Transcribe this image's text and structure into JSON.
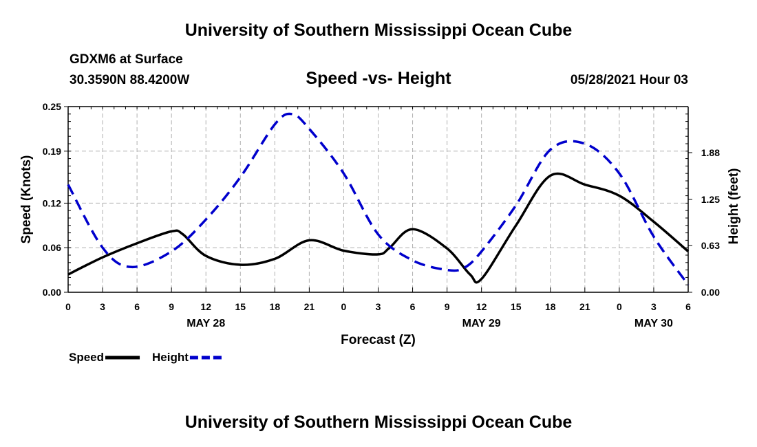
{
  "header": {
    "title": "University of Southern Mississippi Ocean Cube",
    "station": "GDXM6 at Surface",
    "coords": "30.3590N  88.4200W",
    "chart_title": "Speed -vs- Height",
    "datetime": "05/28/2021 Hour 03"
  },
  "footer": {
    "title": "University of Southern Mississippi Ocean Cube"
  },
  "chart_data": {
    "type": "line",
    "title": "Speed -vs- Height",
    "xlabel": "Forecast (Z)",
    "ylabel_left": "Speed (Knots)",
    "ylabel_right": "Height (feet)",
    "x_hours_range": [
      0,
      54
    ],
    "x_tick_hours": [
      0,
      3,
      6,
      9,
      12,
      15,
      18,
      21,
      24,
      27,
      30,
      33,
      36,
      39,
      42,
      45,
      48,
      51,
      54
    ],
    "x_tick_labels": [
      "0",
      "3",
      "6",
      "9",
      "12",
      "15",
      "18",
      "21",
      "0",
      "3",
      "6",
      "9",
      "12",
      "15",
      "18",
      "21",
      "0",
      "3",
      "6"
    ],
    "date_labels": [
      {
        "hour": 12,
        "label": "MAY 28"
      },
      {
        "hour": 36,
        "label": "MAY 29"
      },
      {
        "hour": 51,
        "label": "MAY 30"
      }
    ],
    "left_axis": {
      "ylim": [
        0,
        0.25
      ],
      "ticks": [
        0.0,
        0.06,
        0.12,
        0.19,
        0.25
      ],
      "tick_labels": [
        "0.00",
        "0.06",
        "0.12",
        "0.19",
        "0.25"
      ]
    },
    "right_axis": {
      "ylim": [
        0,
        2.5
      ],
      "ticks": [
        0.0,
        0.63,
        1.25,
        1.88
      ],
      "tick_labels": [
        "0.00",
        "0.63",
        "1.25",
        "1.88"
      ]
    },
    "grid": true,
    "legend_position": "bottom-left",
    "series": [
      {
        "name": "Speed",
        "axis": "left",
        "color": "#000000",
        "style": "solid",
        "x": [
          0,
          3,
          6,
          9,
          10,
          12,
          15,
          18,
          21,
          24,
          27,
          28,
          30,
          33,
          35,
          36,
          39,
          42,
          45,
          48,
          51,
          54
        ],
        "y": [
          0.024,
          0.047,
          0.066,
          0.082,
          0.078,
          0.049,
          0.037,
          0.045,
          0.07,
          0.056,
          0.051,
          0.06,
          0.085,
          0.059,
          0.024,
          0.018,
          0.09,
          0.157,
          0.145,
          0.13,
          0.095,
          0.055
        ]
      },
      {
        "name": "Height",
        "axis": "right",
        "color": "#0000cc",
        "style": "dashed",
        "x": [
          0,
          3,
          5.5,
          9,
          12,
          15,
          18,
          19.5,
          21,
          24,
          27,
          30,
          33,
          34.5,
          36,
          39,
          42,
          45,
          48,
          51,
          54
        ],
        "y": [
          1.45,
          0.6,
          0.34,
          0.55,
          0.98,
          1.55,
          2.26,
          2.4,
          2.2,
          1.6,
          0.78,
          0.43,
          0.3,
          0.33,
          0.55,
          1.17,
          1.92,
          2.0,
          1.6,
          0.75,
          0.1
        ]
      }
    ]
  }
}
